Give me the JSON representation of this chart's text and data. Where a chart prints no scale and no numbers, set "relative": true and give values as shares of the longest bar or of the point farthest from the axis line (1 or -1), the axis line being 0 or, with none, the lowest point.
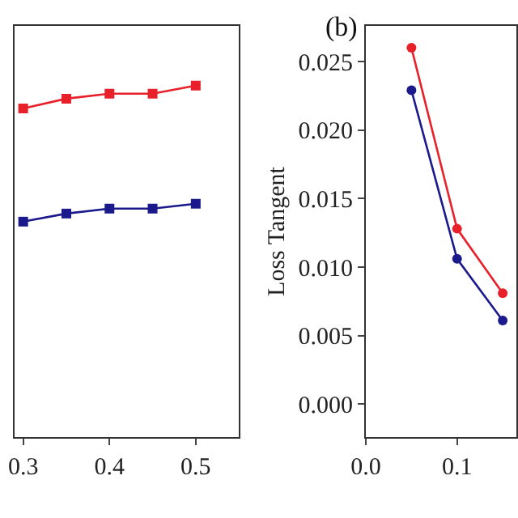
{
  "chart_data": [
    {
      "type": "line",
      "marker": "square",
      "relative": true,
      "tick_labels": "x",
      "x": [
        0.3,
        0.35,
        0.4,
        0.45,
        0.5
      ],
      "xlim": [
        0.29,
        0.55
      ],
      "xticks": [
        {
          "value": 0.3,
          "label": "0.3"
        },
        {
          "value": 0.4,
          "label": "0.4"
        },
        {
          "value": 0.5,
          "label": "0.5"
        }
      ],
      "series": [
        {
          "color": "#e8202a",
          "values": [
            0.935,
            0.963,
            0.977,
            0.977,
            1
          ]
        },
        {
          "color": "#1a1a8c",
          "values": [
            0.613,
            0.636,
            0.65,
            0.65,
            0.664
          ]
        }
      ]
    },
    {
      "type": "line",
      "marker": "circle",
      "annotations": [
        "(b)"
      ],
      "ylabel": "Loss Tangent",
      "x": [
        0.05,
        0.1,
        0.15
      ],
      "xlim": [
        0,
        0.165
      ],
      "xticks": [
        {
          "value": 0,
          "label": "0.0"
        },
        0.1
      ],
      "ylim": [
        -0.0024,
        0.0276
      ],
      "yticks": [
        {
          "value": 0,
          "label": "0.000"
        },
        {
          "value": 0.005,
          "label": "0.005"
        },
        {
          "value": 0.01,
          "label": "0.010"
        },
        {
          "value": 0.015,
          "label": "0.015"
        },
        {
          "value": 0.02,
          "label": "0.020"
        },
        {
          "value": 0.025,
          "label": "0.025"
        }
      ],
      "series": [
        {
          "color": "#e8202a",
          "values": [
            0.026,
            0.0128,
            0.0081
          ]
        },
        {
          "color": "#1a1a8c",
          "values": [
            0.0229,
            0.0106,
            0.0061
          ]
        }
      ]
    }
  ]
}
